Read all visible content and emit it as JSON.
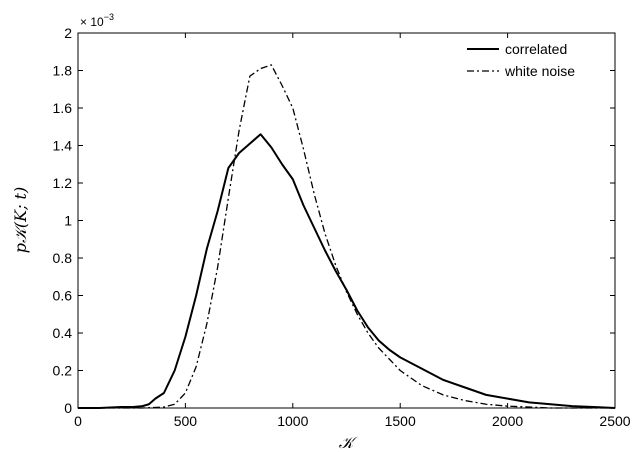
{
  "chart_data": {
    "type": "line",
    "title": "",
    "xlabel": "𝒦",
    "ylabel": "p𝒦(K; t)",
    "y_multiplier_text": "× 10",
    "y_multiplier_exp": "−3",
    "xlim": [
      0,
      2500
    ],
    "ylim": [
      0,
      2
    ],
    "xticks": [
      0,
      500,
      1000,
      1500,
      2000,
      2500
    ],
    "yticks": [
      0,
      0.2,
      0.4,
      0.6,
      0.8,
      1,
      1.2,
      1.4,
      1.6,
      1.8,
      2
    ],
    "x_tick_labels": [
      "0",
      "500",
      "1000",
      "1500",
      "2000",
      "2500"
    ],
    "y_tick_labels": [
      "0",
      "0.2",
      "0.4",
      "0.6",
      "0.8",
      "1",
      "1.2",
      "1.4",
      "1.6",
      "1.8",
      "2"
    ],
    "grid": false,
    "legend_position": "top-right",
    "series": [
      {
        "name": "correlated",
        "color": "#000000",
        "style": "solid",
        "x": [
          0,
          100,
          200,
          250,
          300,
          330,
          360,
          400,
          450,
          500,
          550,
          600,
          650,
          700,
          750,
          800,
          850,
          900,
          950,
          1000,
          1050,
          1100,
          1150,
          1200,
          1250,
          1300,
          1350,
          1400,
          1450,
          1500,
          1600,
          1700,
          1800,
          1900,
          2000,
          2050,
          2100,
          2200,
          2300,
          2400,
          2500
        ],
        "y": [
          0,
          0,
          0.005,
          0.005,
          0.01,
          0.02,
          0.05,
          0.08,
          0.2,
          0.38,
          0.6,
          0.85,
          1.05,
          1.28,
          1.36,
          1.41,
          1.46,
          1.39,
          1.3,
          1.22,
          1.08,
          0.96,
          0.84,
          0.73,
          0.63,
          0.52,
          0.43,
          0.36,
          0.31,
          0.27,
          0.21,
          0.15,
          0.11,
          0.07,
          0.05,
          0.04,
          0.03,
          0.02,
          0.01,
          0.005,
          0
        ]
      },
      {
        "name": "white noise",
        "color": "#000000",
        "style": "dashdot",
        "x": [
          0,
          200,
          300,
          400,
          450,
          500,
          550,
          600,
          650,
          700,
          750,
          800,
          850,
          900,
          950,
          1000,
          1050,
          1100,
          1150,
          1200,
          1250,
          1300,
          1350,
          1400,
          1450,
          1500,
          1600,
          1700,
          1800,
          1900,
          2000,
          2100,
          2200,
          2300,
          2500
        ],
        "y": [
          0,
          0,
          0,
          0.005,
          0.02,
          0.08,
          0.22,
          0.45,
          0.75,
          1.12,
          1.48,
          1.77,
          1.81,
          1.83,
          1.72,
          1.6,
          1.38,
          1.14,
          0.93,
          0.76,
          0.62,
          0.5,
          0.4,
          0.32,
          0.26,
          0.2,
          0.12,
          0.07,
          0.04,
          0.02,
          0.01,
          0.005,
          0,
          0,
          0
        ]
      }
    ]
  }
}
